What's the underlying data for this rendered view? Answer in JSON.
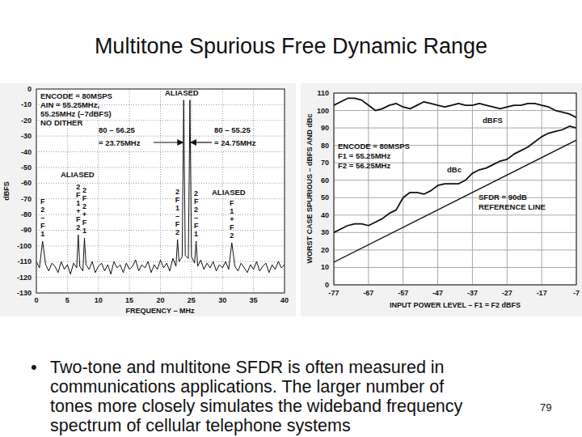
{
  "title": "Multitone Spurious Free Dynamic Range",
  "chart_data": [
    {
      "type": "line",
      "xlabel": "FREQUENCY – MHz",
      "ylabel": "dBFS",
      "xlim": [
        0,
        40
      ],
      "ylim": [
        -130,
        0
      ],
      "xticks": [
        0,
        5,
        10,
        15,
        20,
        25,
        30,
        35,
        40
      ],
      "yticks": [
        0,
        -10,
        -20,
        -30,
        -40,
        -50,
        -60,
        -70,
        -80,
        -90,
        -100,
        -110,
        -120,
        -130
      ],
      "grid": true,
      "series": [
        {
          "color": "#111111",
          "x": [
            0,
            0.5,
            1,
            1.5,
            2,
            2.5,
            3,
            3.5,
            4,
            4.5,
            5,
            5.5,
            6,
            6.5,
            6.75,
            7,
            7.5,
            7.75,
            8,
            8.5,
            9,
            9.5,
            10,
            10.5,
            11,
            11.5,
            12,
            12.5,
            13,
            13.5,
            14,
            14.5,
            15,
            15.5,
            16,
            16.5,
            17,
            17.5,
            18,
            18.5,
            19,
            19.5,
            20,
            20.5,
            21,
            21.5,
            22,
            22.5,
            22.75,
            23,
            23.5,
            23.75,
            24,
            24.5,
            24.75,
            25,
            25.5,
            25.75,
            26,
            26.5,
            27,
            27.5,
            28,
            28.5,
            29,
            29.5,
            30,
            30.5,
            31,
            31.5,
            32,
            32.5,
            33,
            33.5,
            34,
            34.5,
            35,
            35.5,
            36,
            36.5,
            37,
            37.5,
            38,
            38.5,
            39,
            39.5,
            40
          ],
          "values": [
            -110,
            -114,
            -97,
            -112,
            -116,
            -111,
            -113,
            -117,
            -110,
            -115,
            -112,
            -118,
            -111,
            -114,
            -93,
            -113,
            -116,
            -95,
            -112,
            -115,
            -110,
            -117,
            -113,
            -111,
            -116,
            -112,
            -118,
            -110,
            -114,
            -112,
            -117,
            -111,
            -115,
            -113,
            -109,
            -116,
            -112,
            -114,
            -110,
            -117,
            -112,
            -115,
            -109,
            -114,
            -111,
            -116,
            -108,
            -113,
            -96,
            -110,
            -107,
            -7,
            -106,
            -108,
            -7,
            -107,
            -111,
            -97,
            -113,
            -109,
            -115,
            -111,
            -114,
            -110,
            -116,
            -112,
            -114,
            -110,
            -115,
            -98,
            -113,
            -116,
            -111,
            -114,
            -117,
            -112,
            -115,
            -110,
            -116,
            -113,
            -111,
            -117,
            -112,
            -115,
            -110,
            -114,
            -112
          ]
        }
      ],
      "annotations": [
        "ENCODE = 80MSPS",
        "AIN = 55.25MHz,",
        "55.25MHz (–7dBFS)",
        "NO DITHER",
        "ALIASED",
        "80 – 56.25",
        "= 23.75MHz",
        "80 – 55.25",
        "= 24.75MHz",
        "ALIASED",
        "ALIASED"
      ],
      "spur_labels": [
        {
          "x": 1,
          "label": "F2–F1"
        },
        {
          "x": 6.75,
          "label": "2F1+F2"
        },
        {
          "x": 7.75,
          "label": "2F2+F1"
        },
        {
          "x": 22.75,
          "label": "2F1–F2"
        },
        {
          "x": 25.75,
          "label": "2F2–F1"
        },
        {
          "x": 31.5,
          "label": "F1+F2"
        }
      ]
    },
    {
      "type": "line",
      "xlabel": "INPUT POWER LEVEL – F1 = F2 dBFS",
      "ylabel": "WORST CASE SPURIOUS – dBFS AND dBc",
      "xlim": [
        -77,
        -7
      ],
      "ylim": [
        0,
        110
      ],
      "xticks": [
        -77,
        -67,
        -57,
        -47,
        -37,
        -27,
        -17,
        -7
      ],
      "yticks": [
        0,
        10,
        20,
        30,
        40,
        50,
        60,
        70,
        80,
        90,
        100,
        110
      ],
      "grid": true,
      "series": [
        {
          "name": "dBFS",
          "color": "#111111",
          "x": [
            -77,
            -75,
            -73,
            -71,
            -69,
            -67,
            -65,
            -63,
            -61,
            -59,
            -57,
            -55,
            -53,
            -51,
            -49,
            -47,
            -45,
            -43,
            -41,
            -39,
            -37,
            -35,
            -33,
            -31,
            -29,
            -27,
            -25,
            -23,
            -21,
            -19,
            -17,
            -15,
            -13,
            -11,
            -9,
            -7
          ],
          "values": [
            103,
            105,
            107,
            107,
            106,
            103,
            100,
            101,
            103,
            104,
            102,
            101,
            103,
            105,
            104,
            103,
            102,
            103,
            104,
            103,
            103,
            104,
            103,
            102,
            101,
            102,
            103,
            103,
            104,
            104,
            103,
            102,
            100,
            99,
            98,
            96
          ]
        },
        {
          "name": "dBc",
          "color": "#111111",
          "x": [
            -77,
            -75,
            -73,
            -71,
            -69,
            -67,
            -65,
            -63,
            -61,
            -59,
            -57,
            -55,
            -53,
            -51,
            -49,
            -47,
            -45,
            -43,
            -41,
            -39,
            -37,
            -35,
            -33,
            -31,
            -29,
            -27,
            -25,
            -23,
            -21,
            -19,
            -17,
            -15,
            -13,
            -11,
            -9,
            -7
          ],
          "values": [
            30,
            32,
            34,
            35,
            35,
            34,
            36,
            38,
            41,
            43,
            50,
            53,
            53,
            52,
            54,
            57,
            58,
            58,
            58,
            60,
            64,
            66,
            67,
            69,
            71,
            72,
            75,
            77,
            79,
            82,
            85,
            87,
            88,
            89,
            91,
            90
          ]
        },
        {
          "name": "SFDR = 90dB",
          "color": "#111111",
          "x": [
            -77,
            -7
          ],
          "values": [
            13,
            83
          ]
        }
      ],
      "annotations": [
        "ENCODE = 80MSPS",
        "F1 = 55.25MHz",
        "F2 = 56.25MHz",
        "REFERENCE LINE"
      ]
    }
  ],
  "body": {
    "bullet": "•",
    "lines": [
      "Two-tone and multitone SFDR is often measured in",
      "communications applications. The larger number of",
      "tones more closely simulates the wideband frequency",
      "spectrum of cellular telephone systems"
    ]
  },
  "page_number": "79"
}
